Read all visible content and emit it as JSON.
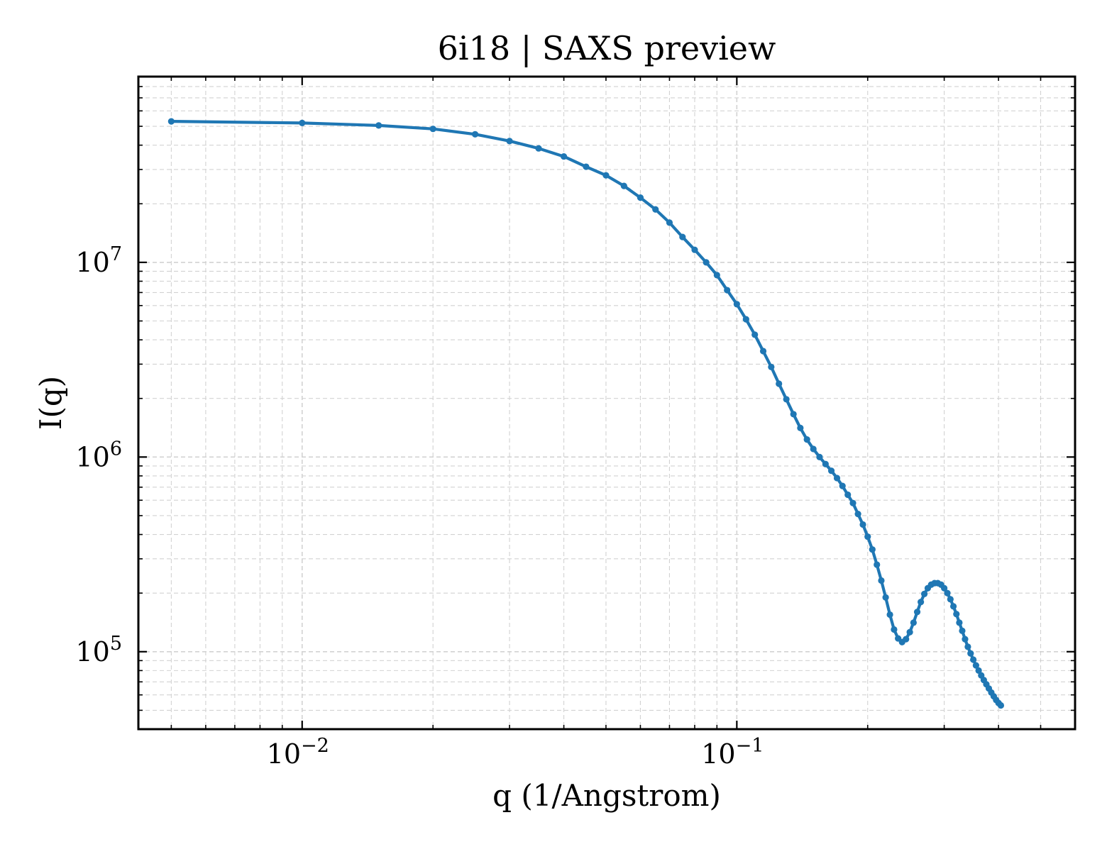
{
  "chart_data": {
    "type": "line",
    "title": "6i18 | SAXS preview",
    "xlabel": "q (1/Angstrom)",
    "ylabel": "I(q)",
    "x_scale": "log",
    "y_scale": "log",
    "xlim": [
      0.0042,
      0.6
    ],
    "ylim": [
      40000,
      90000000
    ],
    "grid": true,
    "legend": "none",
    "x_ticks": [
      {
        "value": 0.01,
        "base": "10",
        "exp": "−2"
      },
      {
        "value": 0.1,
        "base": "10",
        "exp": "−1"
      }
    ],
    "y_ticks": [
      {
        "value": 100000,
        "base": "10",
        "exp": "5"
      },
      {
        "value": 1000000,
        "base": "10",
        "exp": "6"
      },
      {
        "value": 10000000,
        "base": "10",
        "exp": "7"
      }
    ],
    "series": [
      {
        "color": "#1f77b4",
        "marker": "dot",
        "points": [
          [
            0.005,
            53000000
          ],
          [
            0.01,
            52000000
          ],
          [
            0.015,
            50500000
          ],
          [
            0.02,
            48500000
          ],
          [
            0.025,
            45500000
          ],
          [
            0.03,
            42000000
          ],
          [
            0.035,
            38500000
          ],
          [
            0.04,
            35000000
          ],
          [
            0.045,
            31000000
          ],
          [
            0.05,
            28000000
          ],
          [
            0.055,
            24700000
          ],
          [
            0.06,
            21500000
          ],
          [
            0.065,
            18700000
          ],
          [
            0.07,
            16000000
          ],
          [
            0.075,
            13500000
          ],
          [
            0.08,
            11600000
          ],
          [
            0.085,
            10000000
          ],
          [
            0.09,
            8600000
          ],
          [
            0.095,
            7200000
          ],
          [
            0.1,
            6100000
          ],
          [
            0.105,
            5100000
          ],
          [
            0.11,
            4250000
          ],
          [
            0.115,
            3500000
          ],
          [
            0.12,
            2900000
          ],
          [
            0.125,
            2380000
          ],
          [
            0.13,
            1980000
          ],
          [
            0.135,
            1660000
          ],
          [
            0.14,
            1410000
          ],
          [
            0.145,
            1230000
          ],
          [
            0.15,
            1100000
          ],
          [
            0.155,
            1000000
          ],
          [
            0.16,
            920000
          ],
          [
            0.165,
            850000
          ],
          [
            0.17,
            780000
          ],
          [
            0.175,
            710000
          ],
          [
            0.18,
            640000
          ],
          [
            0.185,
            580000
          ],
          [
            0.19,
            510000
          ],
          [
            0.195,
            450000
          ],
          [
            0.2,
            390000
          ],
          [
            0.205,
            335000
          ],
          [
            0.21,
            280000
          ],
          [
            0.215,
            232000
          ],
          [
            0.22,
            190000
          ],
          [
            0.225,
            155000
          ],
          [
            0.23,
            130000
          ],
          [
            0.235,
            117000
          ],
          [
            0.24,
            112000
          ],
          [
            0.245,
            116000
          ],
          [
            0.25,
            126000
          ],
          [
            0.255,
            141000
          ],
          [
            0.26,
            160000
          ],
          [
            0.265,
            180000
          ],
          [
            0.27,
            198000
          ],
          [
            0.275,
            212000
          ],
          [
            0.28,
            221000
          ],
          [
            0.285,
            225000
          ],
          [
            0.29,
            225000
          ],
          [
            0.295,
            221000
          ],
          [
            0.3,
            212000
          ],
          [
            0.305,
            200000
          ],
          [
            0.31,
            186000
          ],
          [
            0.315,
            171000
          ],
          [
            0.32,
            156000
          ],
          [
            0.325,
            141000
          ],
          [
            0.33,
            128000
          ],
          [
            0.335,
            116000
          ],
          [
            0.34,
            106000
          ],
          [
            0.345,
            98000
          ],
          [
            0.35,
            91000
          ],
          [
            0.355,
            85000
          ],
          [
            0.36,
            80000
          ],
          [
            0.365,
            75500
          ],
          [
            0.37,
            71500
          ],
          [
            0.375,
            68000
          ],
          [
            0.38,
            64700
          ],
          [
            0.385,
            61700
          ],
          [
            0.39,
            59000
          ],
          [
            0.395,
            56500
          ],
          [
            0.4,
            54500
          ],
          [
            0.405,
            53000
          ]
        ]
      }
    ]
  }
}
